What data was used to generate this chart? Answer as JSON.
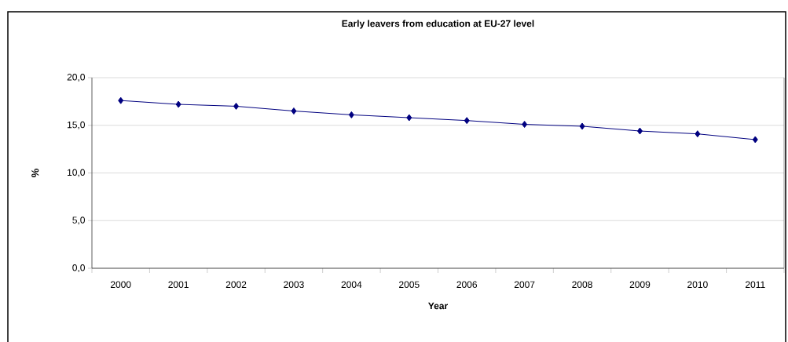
{
  "chart_data": {
    "type": "line",
    "title": "Early leavers from education at EU-27 level",
    "xlabel": "Year",
    "ylabel": "%",
    "categories": [
      "2000",
      "2001",
      "2002",
      "2003",
      "2004",
      "2005",
      "2006",
      "2007",
      "2008",
      "2009",
      "2010",
      "2011"
    ],
    "series": [
      {
        "color": "#000080",
        "values": [
          17.6,
          17.2,
          17.0,
          16.5,
          16.1,
          15.8,
          15.5,
          15.1,
          14.9,
          14.4,
          14.1,
          13.5
        ]
      }
    ],
    "ylim": [
      0,
      20
    ],
    "yticks": [
      {
        "value": 0,
        "label": "0,0"
      },
      {
        "value": 5,
        "label": "5,0"
      },
      {
        "value": 10,
        "label": "10,0"
      },
      {
        "value": 15,
        "label": "15,0"
      },
      {
        "value": 20,
        "label": "20,0"
      }
    ],
    "grid": "y",
    "marker": "diamond",
    "line_style": "solid"
  }
}
